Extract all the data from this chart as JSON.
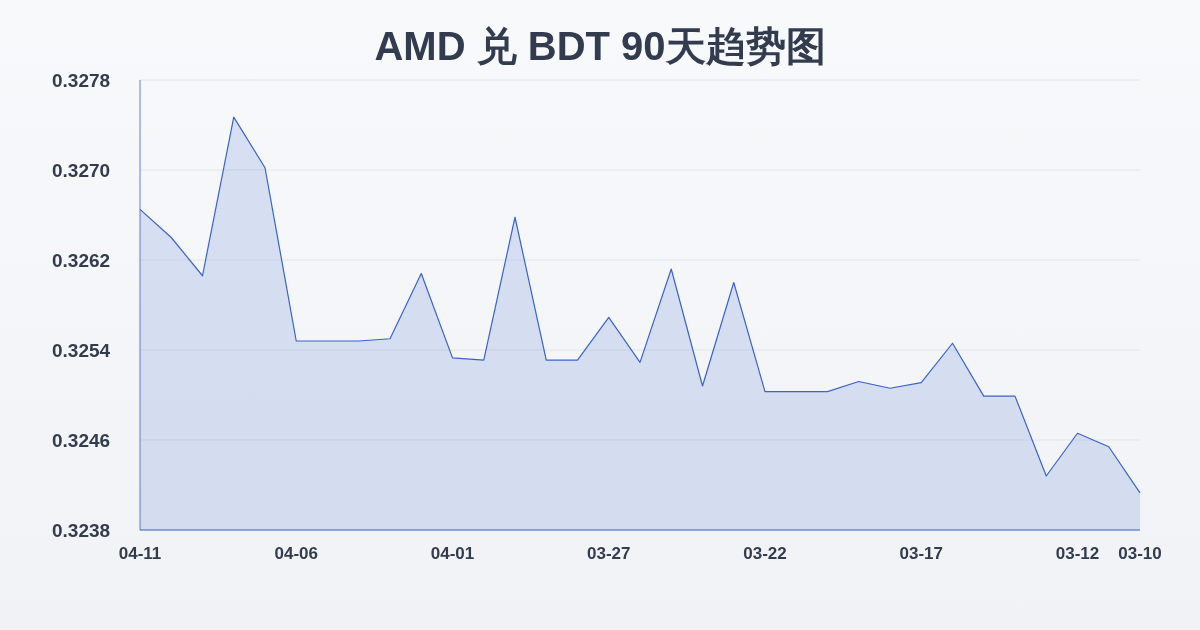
{
  "chart_data": {
    "type": "area",
    "title": "AMD 兑 BDT 90天趋势图",
    "x": [
      "--04-11",
      "--04-10",
      "--04-09",
      "--04-08",
      "--04-07",
      "--04-06",
      "--04-05",
      "--04-04",
      "--04-03",
      "--04-02",
      "--04-01",
      "--03-31",
      "--03-30",
      "--03-29",
      "--03-28",
      "--03-27",
      "--03-26",
      "--03-25",
      "--03-24",
      "--03-23",
      "--03-22",
      "--03-21",
      "--03-20",
      "--03-19",
      "--03-18",
      "--03-17",
      "--03-16",
      "--03-15",
      "--03-14",
      "--03-13",
      "--03-12",
      "--03-11",
      "--03-10"
    ],
    "series": [
      {
        "color": "#3a62d0",
        "values": [
          0.32665,
          0.3264,
          0.32606,
          0.32747,
          0.32702,
          0.32548,
          0.32548,
          0.32548,
          0.3255,
          0.32608,
          0.32533,
          0.32531,
          0.32658,
          0.32531,
          0.32531,
          0.32569,
          0.32529,
          0.32612,
          0.32508,
          0.326,
          0.32503,
          0.32503,
          0.32503,
          0.32512,
          0.32506,
          0.32511,
          0.32546,
          0.32499,
          0.32499,
          0.32428,
          0.32466,
          0.32454,
          0.32413
        ]
      }
    ],
    "xlim": [
      "--04-11",
      "--03-10"
    ],
    "xticks": [
      {
        "value": "--04-11",
        "label": "04-11"
      },
      {
        "value": "--04-06",
        "label": "04-06"
      },
      {
        "value": "--04-01",
        "label": "04-01"
      },
      {
        "value": "--03-27",
        "label": "03-27"
      },
      {
        "value": "--03-22",
        "label": "03-22"
      },
      {
        "value": "--03-17",
        "label": "03-17"
      },
      {
        "value": "--03-12",
        "label": "03-12"
      },
      {
        "value": "--03-10",
        "label": "03-10"
      }
    ],
    "ylim": [
      0.3238,
      0.3278
    ],
    "yticks": [
      0.3238,
      0.3246,
      0.3254,
      0.3262,
      {
        "value": 0.327,
        "label": "0.3270"
      },
      0.3278
    ],
    "grid": "y"
  }
}
